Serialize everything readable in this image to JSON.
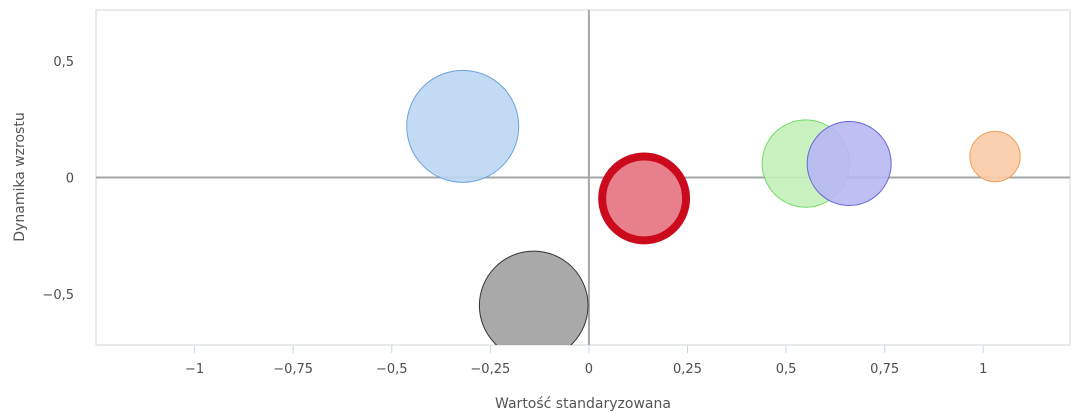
{
  "chart_data": {
    "type": "bubble",
    "title": "",
    "xlabel": "Wartość standaryzowana",
    "ylabel": "Dynamika wzrostu",
    "xlim": [
      -1.25,
      1.22
    ],
    "ylim": [
      -0.72,
      0.72
    ],
    "x_ticks": [
      {
        "value": -1,
        "label": "−1"
      },
      {
        "value": -0.75,
        "label": "−0,75"
      },
      {
        "value": -0.5,
        "label": "−0,5"
      },
      {
        "value": -0.25,
        "label": "−0,25"
      },
      {
        "value": 0,
        "label": "0"
      },
      {
        "value": 0.25,
        "label": "0,25"
      },
      {
        "value": 0.5,
        "label": "0,5"
      },
      {
        "value": 0.75,
        "label": "0,75"
      },
      {
        "value": 1,
        "label": "1"
      }
    ],
    "y_ticks": [
      {
        "value": 0.5,
        "label": "0,5"
      },
      {
        "value": 0,
        "label": "0"
      },
      {
        "value": -0.5,
        "label": "−0,5"
      }
    ],
    "grid": false,
    "zero_lines": true,
    "bubbles": [
      {
        "x": -0.32,
        "y": 0.22,
        "size": 1.0,
        "fill": "#bcd6f3",
        "stroke": "#6da3df",
        "highlighted": false
      },
      {
        "x": -0.14,
        "y": -0.55,
        "size": 0.97,
        "fill": "#a0a0a0",
        "stroke": "#333333",
        "highlighted": false
      },
      {
        "x": 0.14,
        "y": -0.09,
        "size": 0.82,
        "fill": "#e8808b",
        "stroke": "#cc0a1e",
        "highlighted": true
      },
      {
        "x": 0.55,
        "y": 0.06,
        "size": 0.78,
        "fill": "#c3f1b9",
        "stroke": "#73d96a",
        "highlighted": false
      },
      {
        "x": 0.66,
        "y": 0.06,
        "size": 0.75,
        "fill": "#b8b8f3",
        "stroke": "#6767d8",
        "highlighted": false
      },
      {
        "x": 1.03,
        "y": 0.09,
        "size": 0.45,
        "fill": "#f9cba5",
        "stroke": "#ee9f5c",
        "highlighted": false
      }
    ]
  }
}
